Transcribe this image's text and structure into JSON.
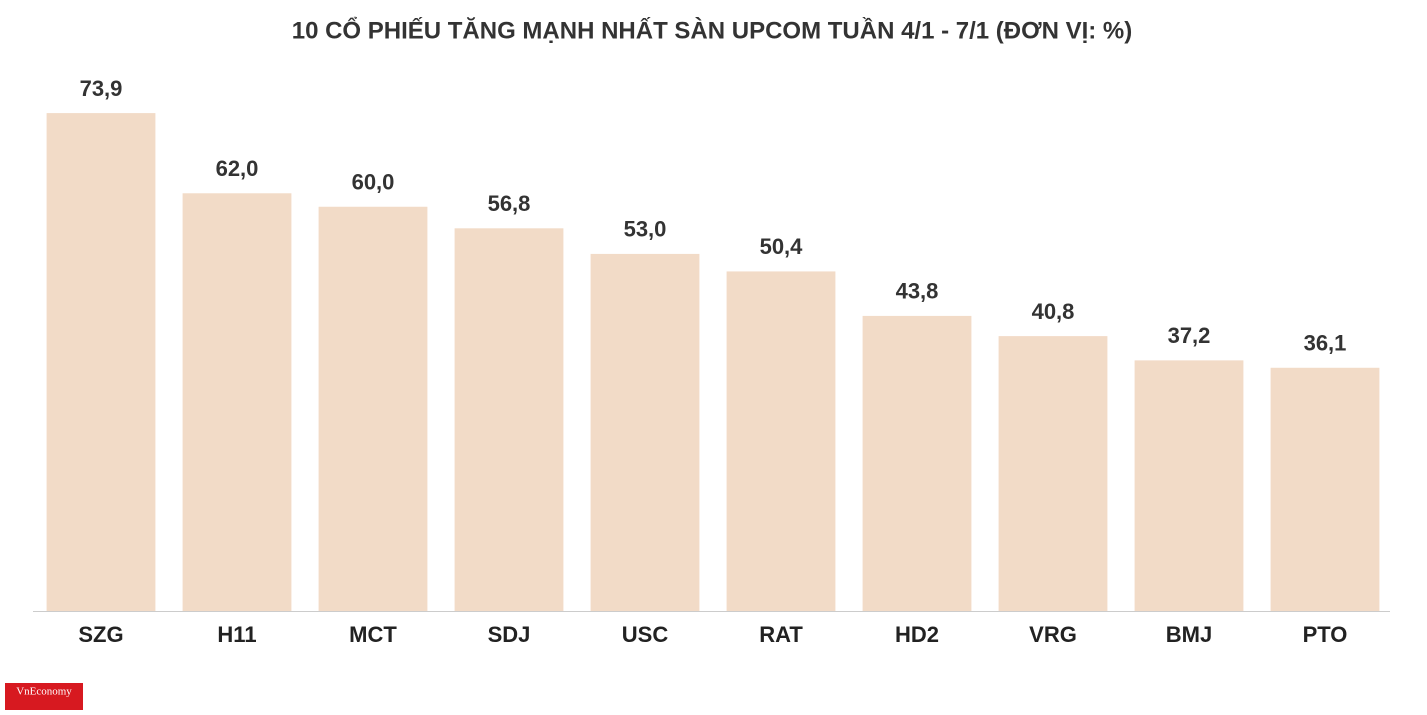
{
  "chart_data": {
    "type": "bar",
    "title": "10 CỔ PHIẾU TĂNG MẠNH NHẤT SÀN UPCOM TUẦN 4/1 - 7/1 (ĐƠN VỊ: %)",
    "categories": [
      "SZG",
      "H11",
      "MCT",
      "SDJ",
      "USC",
      "RAT",
      "HD2",
      "VRG",
      "BMJ",
      "PTO"
    ],
    "values": [
      73.9,
      62.0,
      60.0,
      56.8,
      53.0,
      50.4,
      43.8,
      40.8,
      37.2,
      36.1
    ],
    "value_labels": [
      "73,9",
      "62,0",
      "60,0",
      "56,8",
      "53,0",
      "50,4",
      "43,8",
      "40,8",
      "37,2",
      "36,1"
    ],
    "color": "#f2dbc7",
    "ylim": [
      0,
      80
    ]
  },
  "logo": "VnEconomy"
}
